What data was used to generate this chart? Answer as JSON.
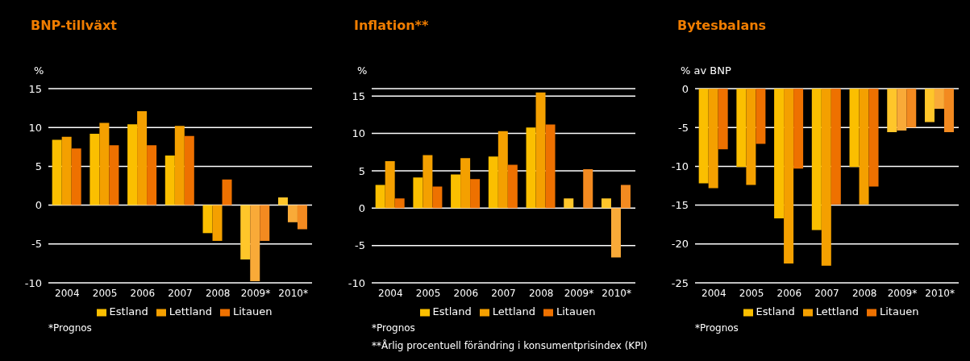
{
  "chart_data": [
    {
      "type": "bar",
      "title": "BNP-tillväxt",
      "ylabel": "%",
      "categories": [
        "2004",
        "2005",
        "2006",
        "2007",
        "2008",
        "2009*",
        "2010*"
      ],
      "ylim": [
        -10,
        15
      ],
      "yticks": [
        -10,
        -5,
        0,
        5,
        10,
        15
      ],
      "grid": "y",
      "legend": "bottom",
      "annotations": [
        "*Prognos"
      ],
      "series": [
        {
          "name": "Estland",
          "color": "#fbbf00",
          "colors": [
            "#fbbf00",
            "#fbbf00",
            "#fbbf00",
            "#fbbf00",
            "#fbbf00",
            "#ffc62a",
            "#ffc62a"
          ],
          "values": [
            8.4,
            9.2,
            10.4,
            6.4,
            -3.6,
            -7.0,
            1.0
          ]
        },
        {
          "name": "Lettland",
          "color": "#f4a000",
          "colors": [
            "#f4a000",
            "#f4a000",
            "#f4a000",
            "#f4a000",
            "#f4a000",
            "#f9aa38",
            "#f9aa38"
          ],
          "values": [
            8.8,
            10.6,
            12.1,
            10.2,
            -4.6,
            -9.8,
            -2.2
          ]
        },
        {
          "name": "Litauen",
          "color": "#ee7100",
          "colors": [
            "#ee7100",
            "#ee7100",
            "#ee7100",
            "#ee7100",
            "#ee7100",
            "#f38a20",
            "#f38a20"
          ],
          "values": [
            7.3,
            7.7,
            7.7,
            8.9,
            3.3,
            -4.6,
            -3.1
          ]
        }
      ]
    },
    {
      "type": "bar",
      "title": "Inflation**",
      "ylabel": "%",
      "categories": [
        "2004",
        "2005",
        "2006",
        "2007",
        "2008",
        "2009*",
        "2010*"
      ],
      "ylim": [
        -10,
        16
      ],
      "yticks": [
        -10,
        -5,
        0,
        5,
        10,
        15
      ],
      "grid": "y",
      "legend": "bottom",
      "annotations": [
        "*Prognos",
        "**Årlig procentuell förändring i konsumentprisindex (KPI)"
      ],
      "series": [
        {
          "name": "Estland",
          "color": "#fbbf00",
          "colors": [
            "#fbbf00",
            "#fbbf00",
            "#fbbf00",
            "#fbbf00",
            "#fbbf00",
            "#ffc62a",
            "#ffc62a"
          ],
          "values": [
            3.1,
            4.1,
            4.5,
            6.9,
            10.8,
            1.3,
            1.3
          ]
        },
        {
          "name": "Lettland",
          "color": "#f4a000",
          "colors": [
            "#f4a000",
            "#f4a000",
            "#f4a000",
            "#f4a000",
            "#f4a000",
            "#f9aa38",
            "#f9aa38"
          ],
          "values": [
            6.3,
            7.1,
            6.7,
            10.3,
            15.5,
            null,
            -6.6
          ]
        },
        {
          "name": "Litauen",
          "color": "#ee7100",
          "colors": [
            "#ee7100",
            "#ee7100",
            "#ee7100",
            "#ee7100",
            "#ee7100",
            "#f38a20",
            "#f38a20"
          ],
          "values": [
            1.3,
            2.9,
            3.9,
            5.8,
            11.2,
            5.2,
            3.1
          ]
        }
      ]
    },
    {
      "type": "bar",
      "title": "Bytesbalans",
      "ylabel": "% av BNP",
      "categories": [
        "2004",
        "2005",
        "2006",
        "2007",
        "2008",
        "2009*",
        "2010*"
      ],
      "ylim": [
        -25,
        0
      ],
      "yticks": [
        -25,
        -20,
        -15,
        -10,
        -5,
        0
      ],
      "grid": "y",
      "legend": "bottom",
      "annotations": [
        "*Prognos"
      ],
      "series": [
        {
          "name": "Estland",
          "color": "#fbbf00",
          "colors": [
            "#fbbf00",
            "#fbbf00",
            "#fbbf00",
            "#fbbf00",
            "#fbbf00",
            "#ffc62a",
            "#ffc62a"
          ],
          "values": [
            -12.2,
            -10.1,
            -16.7,
            -18.2,
            -10.1,
            -5.6,
            -4.3
          ]
        },
        {
          "name": "Lettland",
          "color": "#f4a000",
          "colors": [
            "#f4a000",
            "#f4a000",
            "#f4a000",
            "#f4a000",
            "#f4a000",
            "#f9aa38",
            "#f9aa38"
          ],
          "values": [
            -12.8,
            -12.4,
            -22.5,
            -22.8,
            -14.9,
            -5.4,
            -2.6
          ]
        },
        {
          "name": "Litauen",
          "color": "#ee7100",
          "colors": [
            "#ee7100",
            "#ee7100",
            "#ee7100",
            "#ee7100",
            "#ee7100",
            "#f38a20",
            "#f38a20"
          ],
          "values": [
            -7.8,
            -7.1,
            -10.3,
            -14.9,
            -12.6,
            -5.0,
            -5.6
          ]
        }
      ]
    }
  ]
}
